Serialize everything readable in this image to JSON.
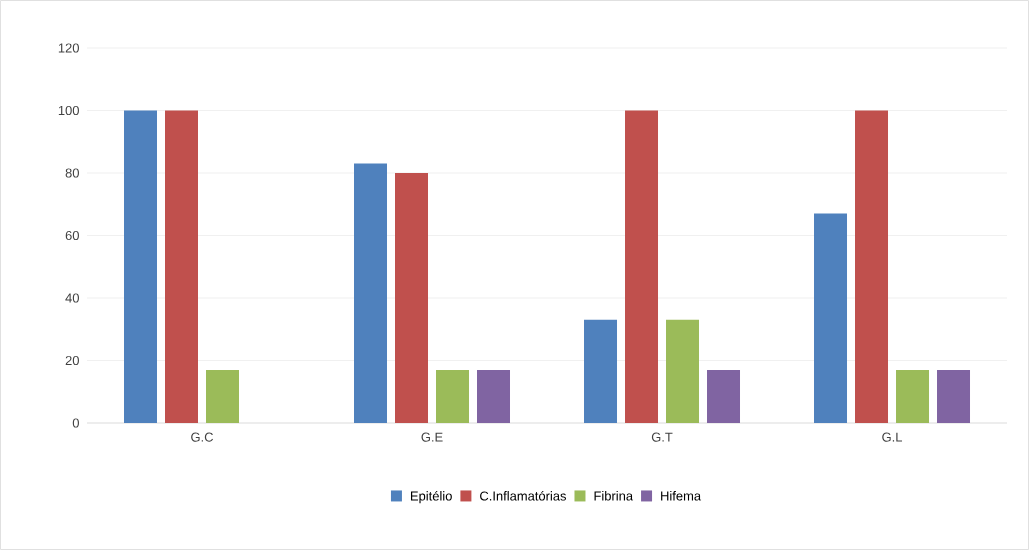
{
  "chart_data": {
    "type": "bar",
    "categories": [
      "G.C",
      "G.E",
      "G.T",
      "G.L"
    ],
    "series": [
      {
        "name": "Epitélio",
        "color": "#4f81bd",
        "values": [
          100,
          83,
          33,
          67
        ]
      },
      {
        "name": "C.Inflamatórias",
        "color": "#c0504d",
        "values": [
          100,
          80,
          100,
          100
        ]
      },
      {
        "name": "Fibrina",
        "color": "#9bbb59",
        "values": [
          17,
          17,
          33,
          17
        ]
      },
      {
        "name": "Hifema",
        "color": "#8064a2",
        "values": [
          null,
          17,
          17,
          17
        ]
      }
    ],
    "ylim": [
      0,
      120
    ],
    "yticks": [
      0,
      20,
      40,
      60,
      80,
      100,
      120
    ],
    "grid": "y",
    "legend": "bottom"
  }
}
